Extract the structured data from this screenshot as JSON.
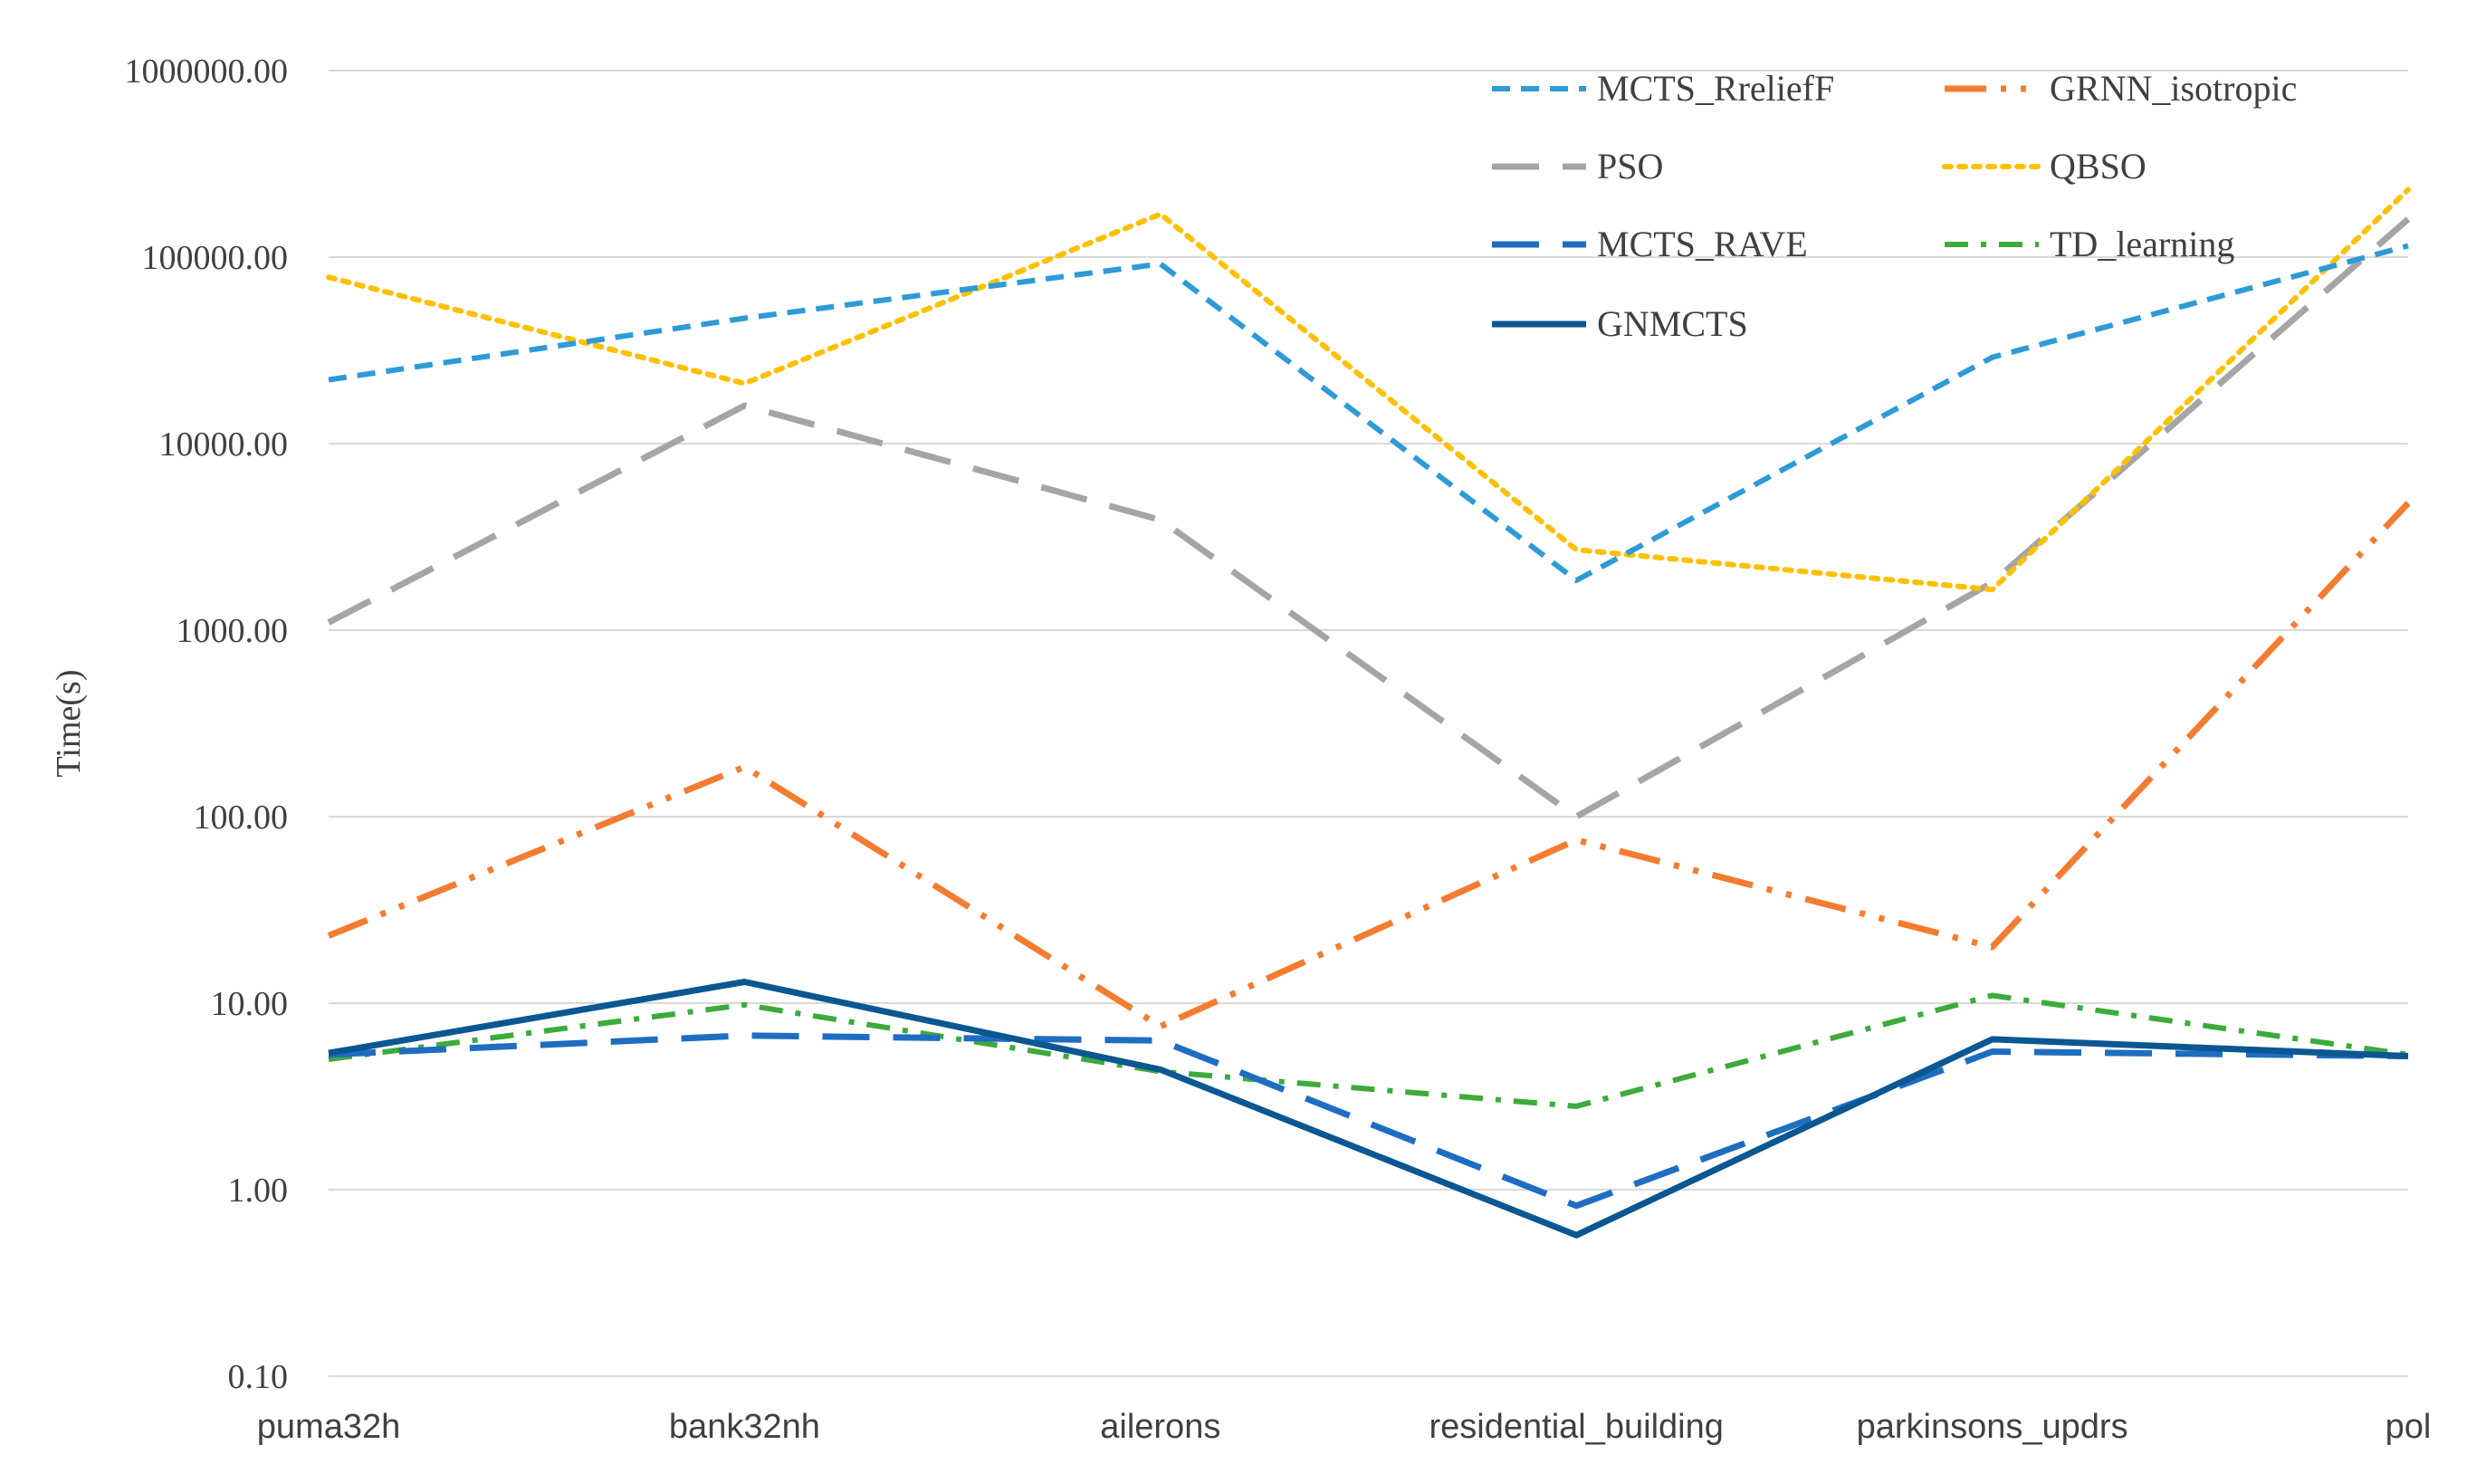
{
  "chart_data": {
    "type": "line",
    "title": "",
    "xlabel": "",
    "ylabel": "Time(s)",
    "yscale": "log",
    "ylim": [
      0.1,
      1000000
    ],
    "yticks": [
      "0.10",
      "1.00",
      "10.00",
      "100.00",
      "1000.00",
      "10000.00",
      "100000.00",
      "1000000.00"
    ],
    "categories": [
      "puma32h",
      "bank32nh",
      "ailerons",
      "residential_building",
      "parkinsons_updrs",
      "pol"
    ],
    "legend_position": "top-right",
    "series": [
      {
        "name": "MCTS_RreliefF",
        "color": "#2e9bd6",
        "dash": "dash",
        "values": [
          22000,
          47000,
          92000,
          1850,
          29000,
          115000
        ]
      },
      {
        "name": "GRNN_isotropic",
        "color": "#f47c30",
        "dash": "dashdotdot",
        "values": [
          23,
          185,
          7.5,
          75,
          20,
          4800
        ]
      },
      {
        "name": "PSO",
        "color": "#a5a5a5",
        "dash": "longdash",
        "values": [
          1100,
          16000,
          3900,
          100,
          1800,
          160000
        ]
      },
      {
        "name": "QBSO",
        "color": "#ffc000",
        "dash": "dot",
        "values": [
          78000,
          21000,
          170000,
          2700,
          1650,
          230000
        ]
      },
      {
        "name": "MCTS_RAVE",
        "color": "#1f6dc2",
        "dash": "longdash",
        "values": [
          5.3,
          6.7,
          6.3,
          0.82,
          5.5,
          5.2
        ]
      },
      {
        "name": "TD_learning",
        "color": "#3cab3c",
        "dash": "dashdot",
        "values": [
          5.0,
          9.8,
          4.3,
          2.8,
          11.0,
          5.3
        ]
      },
      {
        "name": "GNMCTS",
        "color": "#0b5792",
        "dash": "solid",
        "values": [
          5.4,
          13.0,
          4.4,
          0.57,
          6.4,
          5.2
        ]
      }
    ]
  }
}
